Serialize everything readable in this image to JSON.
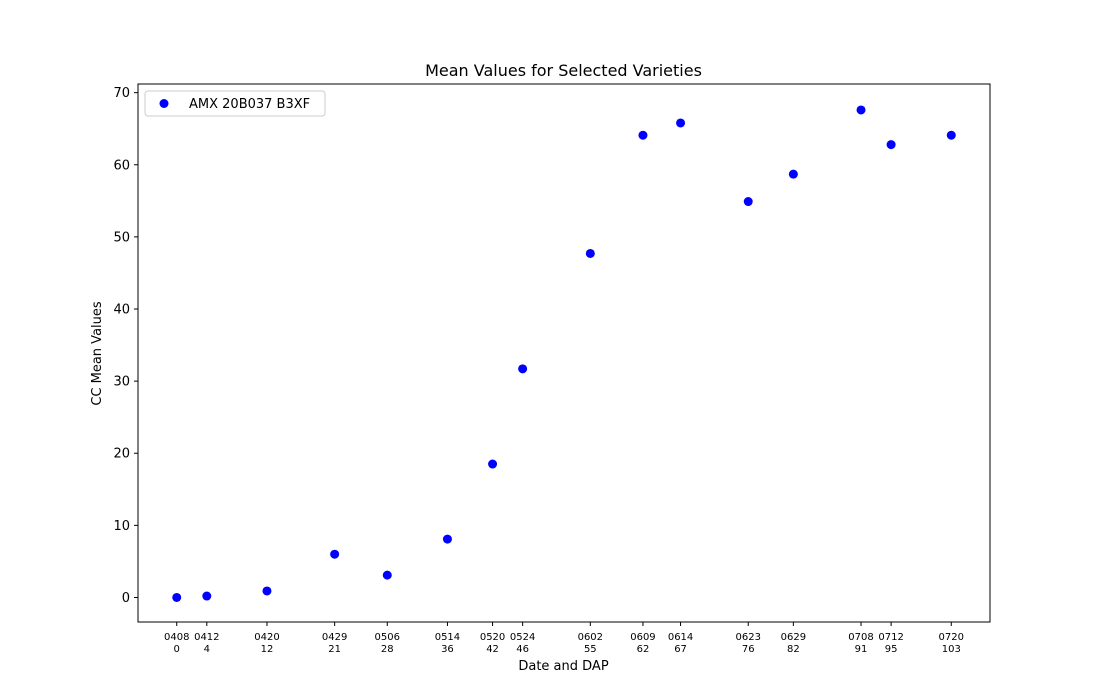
{
  "chart_data": {
    "type": "scatter",
    "title": "Mean Values for Selected Varieties",
    "xlabel": "Date and DAP",
    "ylabel": "CC Mean Values",
    "xlim": [
      -5.15,
      108.15
    ],
    "ylim": [
      -3.4,
      71.2
    ],
    "yticks": [
      0,
      10,
      20,
      30,
      40,
      50,
      60,
      70
    ],
    "x_ticks": [
      {
        "x": 0,
        "date": "0408",
        "dap": "0"
      },
      {
        "x": 4,
        "date": "0412",
        "dap": "4"
      },
      {
        "x": 12,
        "date": "0420",
        "dap": "12"
      },
      {
        "x": 21,
        "date": "0429",
        "dap": "21"
      },
      {
        "x": 28,
        "date": "0506",
        "dap": "28"
      },
      {
        "x": 36,
        "date": "0514",
        "dap": "36"
      },
      {
        "x": 42,
        "date": "0520",
        "dap": "42"
      },
      {
        "x": 46,
        "date": "0524",
        "dap": "46"
      },
      {
        "x": 55,
        "date": "0602",
        "dap": "55"
      },
      {
        "x": 62,
        "date": "0609",
        "dap": "62"
      },
      {
        "x": 67,
        "date": "0614",
        "dap": "67"
      },
      {
        "x": 76,
        "date": "0623",
        "dap": "76"
      },
      {
        "x": 82,
        "date": "0629",
        "dap": "82"
      },
      {
        "x": 91,
        "date": "0708",
        "dap": "91"
      },
      {
        "x": 95,
        "date": "0712",
        "dap": "95"
      },
      {
        "x": 103,
        "date": "0720",
        "dap": "103"
      }
    ],
    "grid": false,
    "legend_position": "top-left",
    "series": [
      {
        "name": "AMX 20B037 B3XF",
        "color": "#0000ff",
        "marker": "circle",
        "x": [
          0,
          4,
          12,
          21,
          28,
          36,
          42,
          46,
          55,
          62,
          67,
          76,
          82,
          91,
          95,
          103
        ],
        "y": [
          0.0,
          0.2,
          0.9,
          6.0,
          3.1,
          8.1,
          18.5,
          31.7,
          47.7,
          64.1,
          65.8,
          54.9,
          58.7,
          67.6,
          62.8,
          64.1
        ]
      }
    ]
  }
}
